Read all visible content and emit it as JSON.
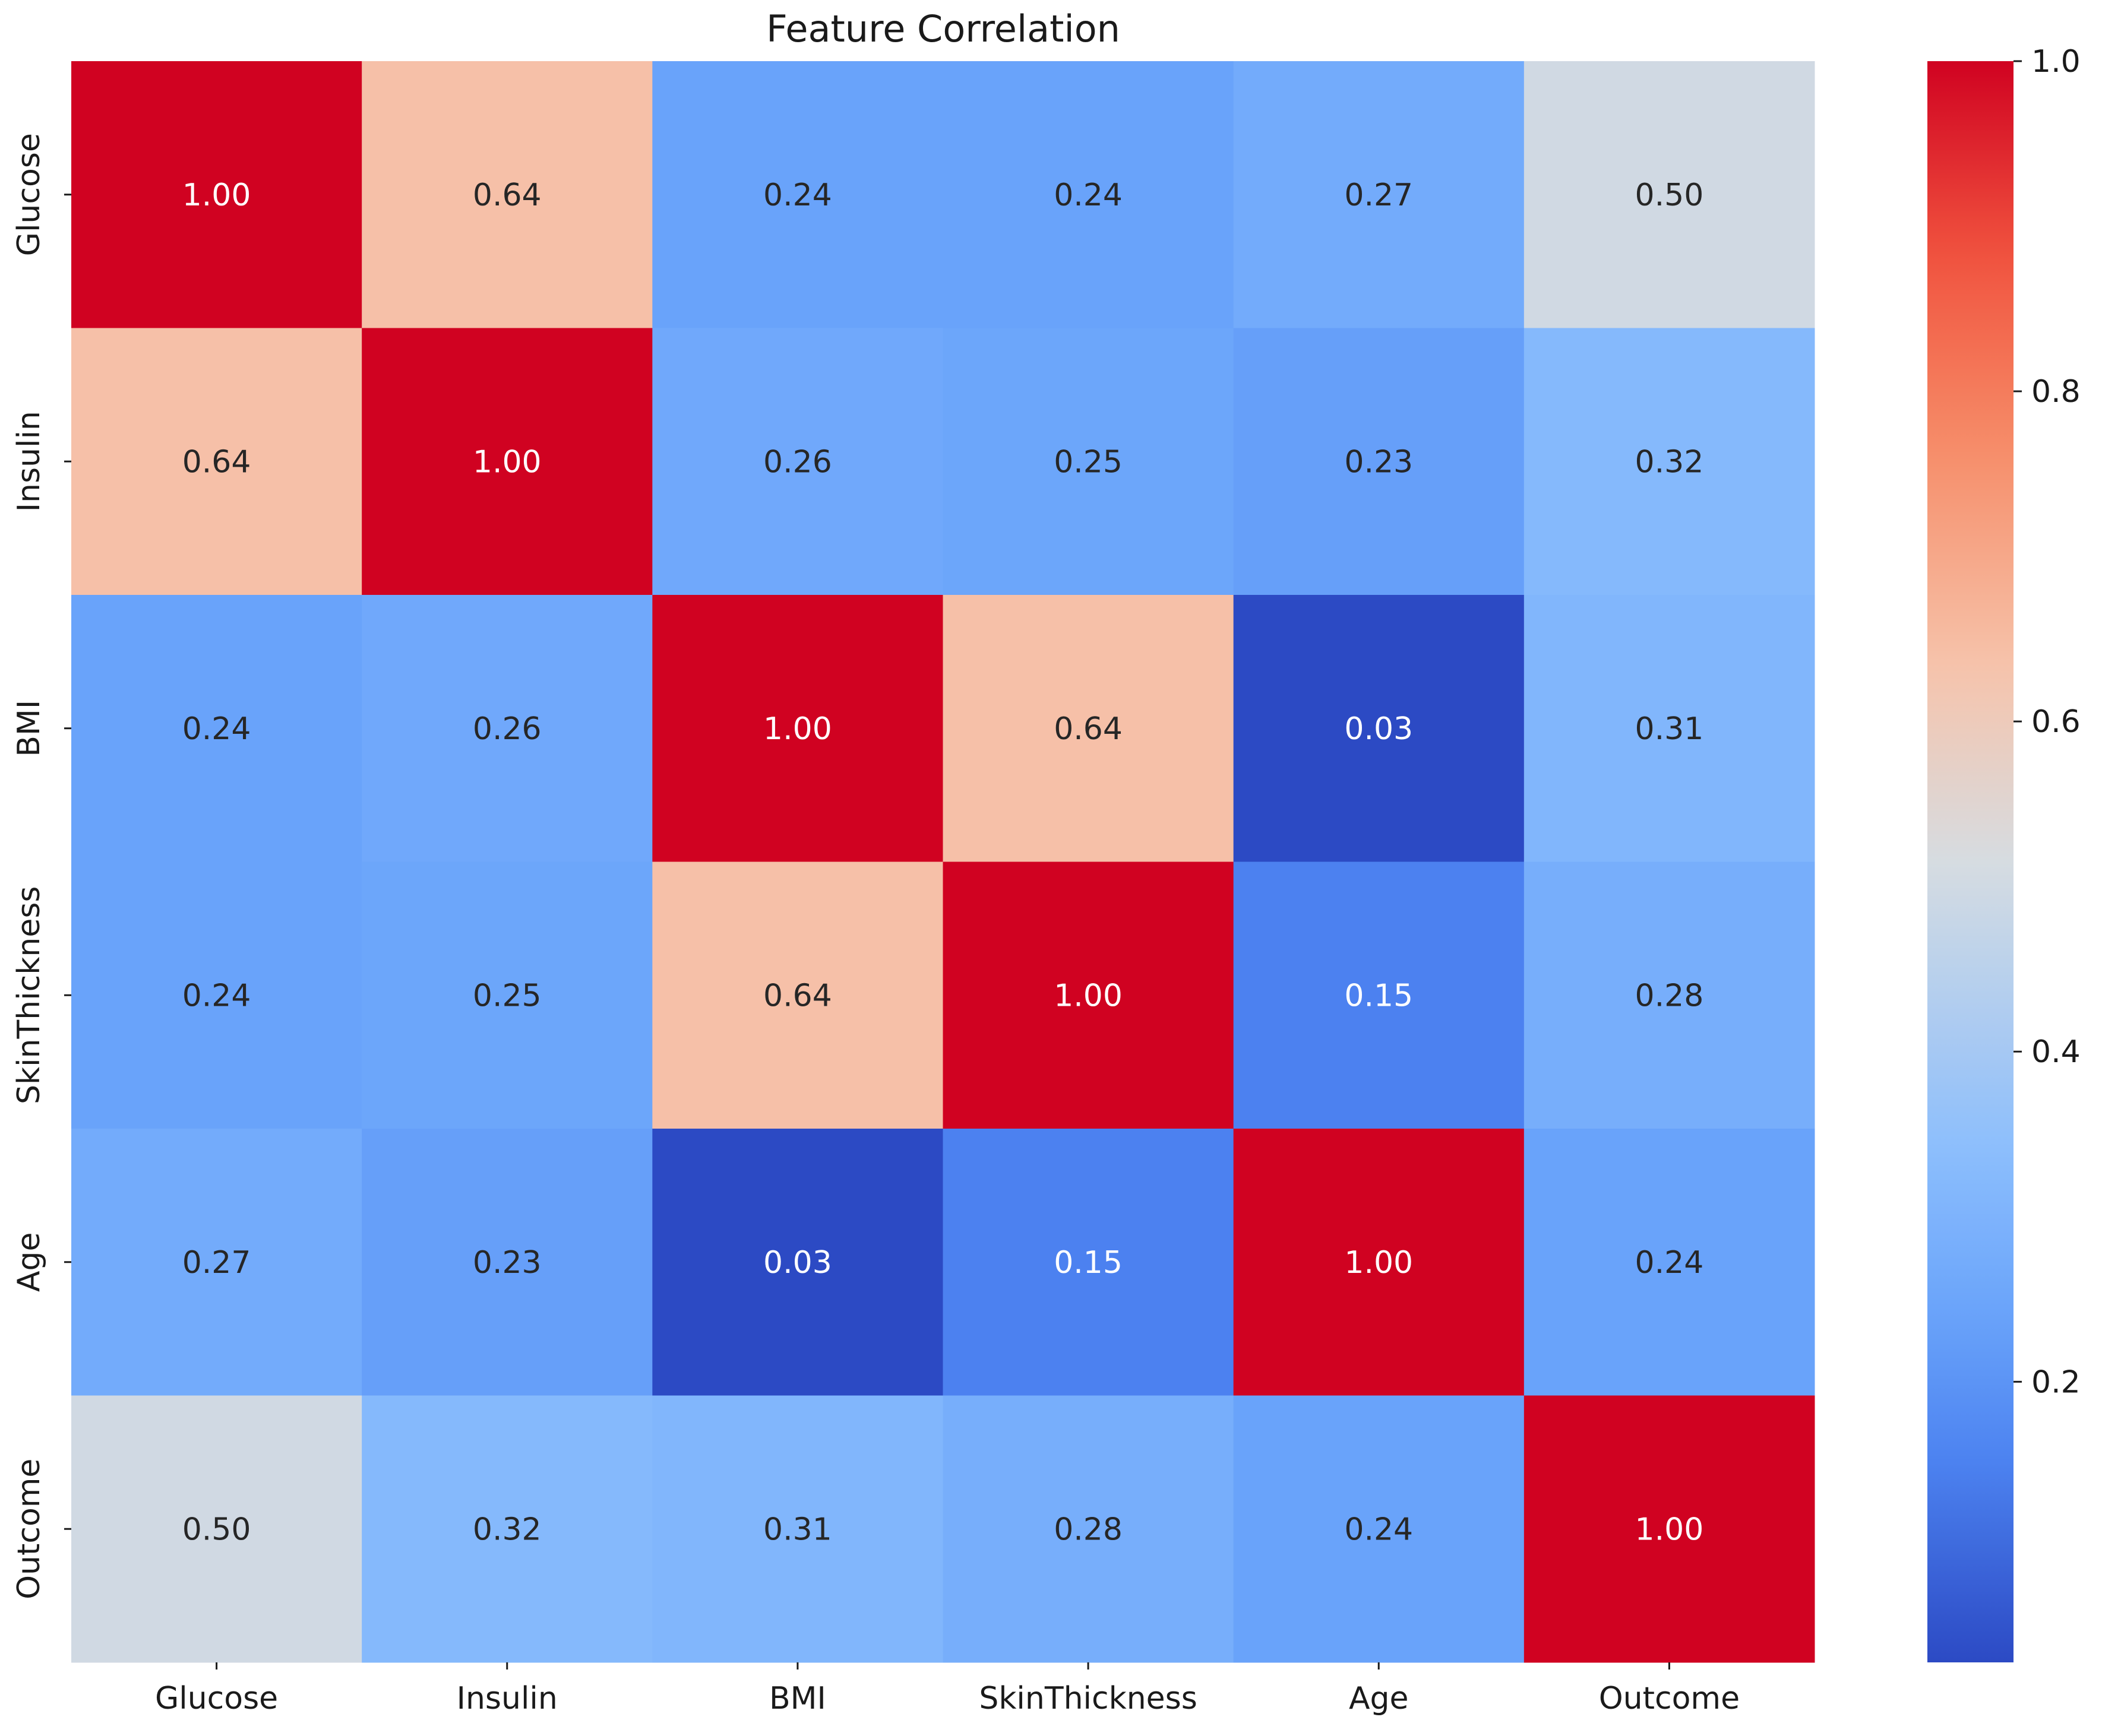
{
  "chart_data": {
    "type": "heatmap",
    "title": "Feature Correlation",
    "xlabel": "",
    "ylabel": "",
    "x_categories": [
      "Glucose",
      "Insulin",
      "BMI",
      "SkinThickness",
      "Age",
      "Outcome"
    ],
    "y_categories": [
      "Glucose",
      "Insulin",
      "BMI",
      "SkinThickness",
      "Age",
      "Outcome"
    ],
    "values": [
      [
        1.0,
        0.64,
        0.24,
        0.24,
        0.27,
        0.5
      ],
      [
        0.64,
        1.0,
        0.26,
        0.25,
        0.23,
        0.32
      ],
      [
        0.24,
        0.26,
        1.0,
        0.64,
        0.03,
        0.31
      ],
      [
        0.24,
        0.25,
        0.64,
        1.0,
        0.15,
        0.28
      ],
      [
        0.27,
        0.23,
        0.03,
        0.15,
        1.0,
        0.24
      ],
      [
        0.5,
        0.32,
        0.31,
        0.28,
        0.24,
        1.0
      ]
    ],
    "value_format": "0.00",
    "colormap": "coolwarm",
    "color_range": [
      0.03,
      1.0
    ],
    "colorbar": {
      "ticks": [
        0.2,
        0.4,
        0.6,
        0.8,
        1.0
      ],
      "tick_labels": [
        "0.2",
        "0.4",
        "0.6",
        "0.8",
        "1.0"
      ],
      "placement": "right"
    },
    "annotation_colors": {
      "dark_text": "#262626",
      "light_text": "#ffffff"
    }
  }
}
